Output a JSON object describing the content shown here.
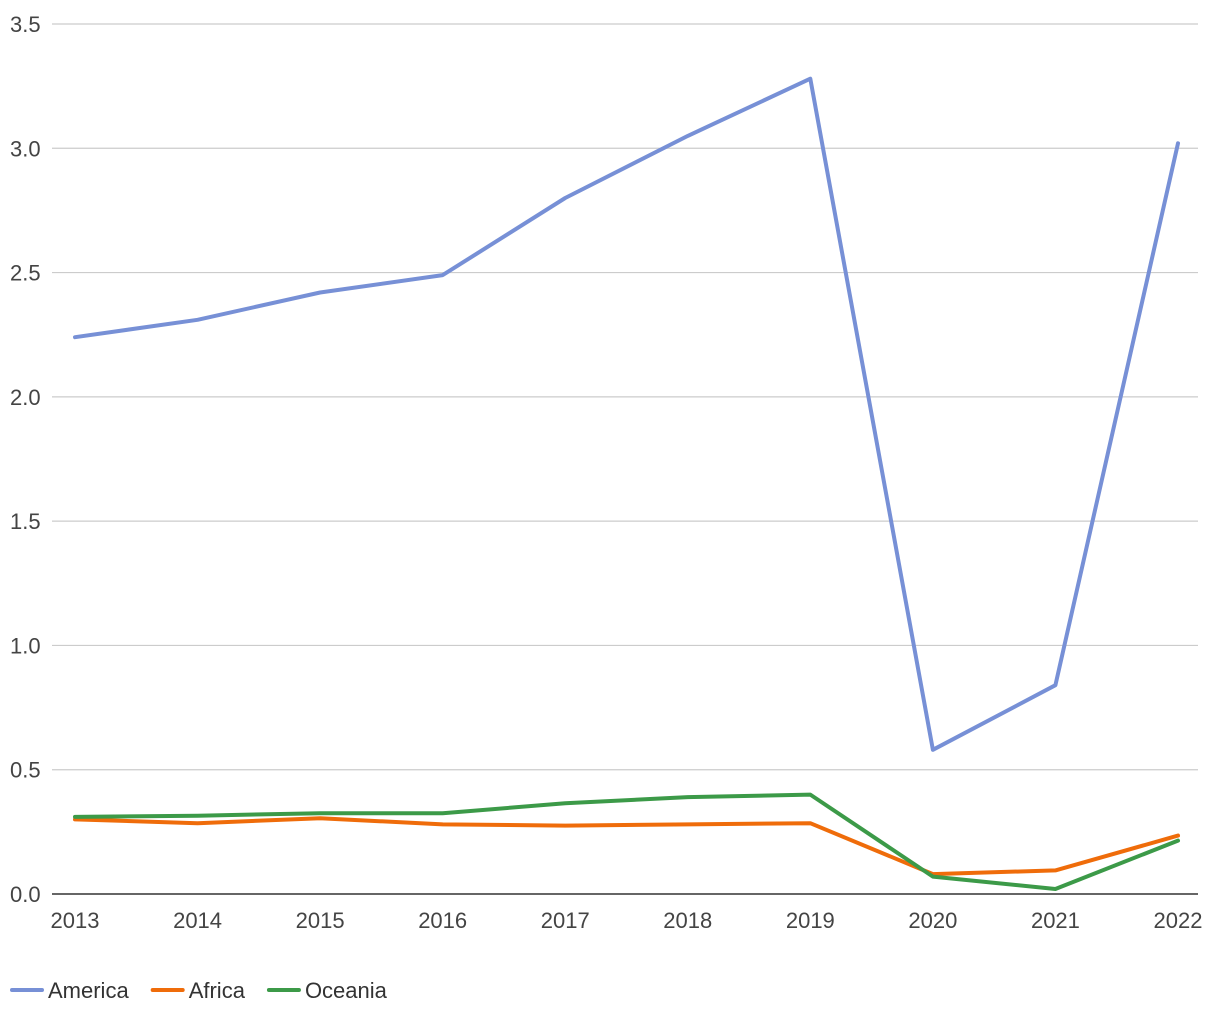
{
  "chart_data": {
    "type": "line",
    "title": "",
    "xlabel": "",
    "ylabel": "",
    "x": [
      "2013",
      "2014",
      "2015",
      "2016",
      "2017",
      "2018",
      "2019",
      "2020",
      "2021",
      "2022"
    ],
    "ylim": [
      0,
      3.5
    ],
    "yticks": [
      "0.0",
      "0.5",
      "1.0",
      "1.5",
      "2.0",
      "2.5",
      "3.0",
      "3.5"
    ],
    "grid": true,
    "legend_position": "bottom-left",
    "series": [
      {
        "name": "America",
        "color": "#7790d6",
        "values": [
          2.24,
          2.31,
          2.42,
          2.49,
          2.8,
          3.05,
          3.28,
          0.58,
          0.84,
          3.02
        ]
      },
      {
        "name": "Africa",
        "color": "#ef6c0a",
        "values": [
          0.3,
          0.285,
          0.305,
          0.28,
          0.275,
          0.28,
          0.285,
          0.08,
          0.095,
          0.235
        ]
      },
      {
        "name": "Oceania",
        "color": "#3c9a48",
        "values": [
          0.31,
          0.315,
          0.325,
          0.325,
          0.365,
          0.39,
          0.4,
          0.07,
          0.02,
          0.215
        ]
      }
    ]
  }
}
